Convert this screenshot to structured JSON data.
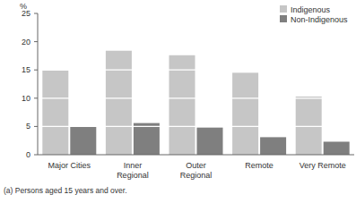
{
  "chart_data": {
    "type": "bar",
    "y_label": "%",
    "categories": [
      "Major Cities",
      "Inner Regional",
      "Outer Regional",
      "Remote",
      "Very Remote"
    ],
    "series": [
      {
        "name": "Indigenous",
        "color": "#c6c6c6",
        "values": [
          14.9,
          18.4,
          17.6,
          14.5,
          10.3
        ]
      },
      {
        "name": "Non-Indigenous",
        "color": "#7f7f7f",
        "values": [
          5.0,
          5.6,
          4.8,
          3.1,
          2.3
        ]
      }
    ],
    "ylim": [
      0,
      25
    ],
    "yticks": [
      0,
      5,
      10,
      15,
      20,
      25
    ],
    "grid": true,
    "legend": "top-right",
    "annotations": [
      "(a) Persons aged 15 years and over."
    ]
  }
}
